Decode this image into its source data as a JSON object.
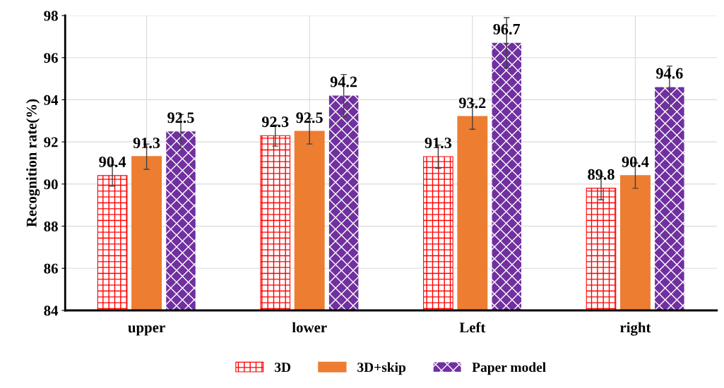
{
  "chart_data": {
    "type": "bar",
    "ylabel": "Recognition rate(%)",
    "categories": [
      "upper",
      "lower",
      "Left",
      "right"
    ],
    "series": [
      {
        "name": "3D",
        "color": "#ff0000",
        "values": [
          90.4,
          92.3,
          91.3,
          89.8
        ],
        "errors": [
          0.5,
          0.5,
          0.55,
          0.55
        ]
      },
      {
        "name": "3D+skip",
        "color": "#ed7d31",
        "values": [
          91.3,
          92.5,
          93.2,
          90.4
        ],
        "errors": [
          0.6,
          0.6,
          0.6,
          0.6
        ]
      },
      {
        "name": "Paper model",
        "color": "#7030a0",
        "values": [
          92.5,
          94.2,
          96.7,
          94.6
        ],
        "errors": [
          0.8,
          1.0,
          1.2,
          1.0
        ]
      }
    ],
    "ylim": [
      84,
      98
    ],
    "yticks": [
      84,
      86,
      88,
      90,
      92,
      94,
      96,
      98
    ],
    "grid": true,
    "legend": "bottom",
    "data_labels": true
  }
}
